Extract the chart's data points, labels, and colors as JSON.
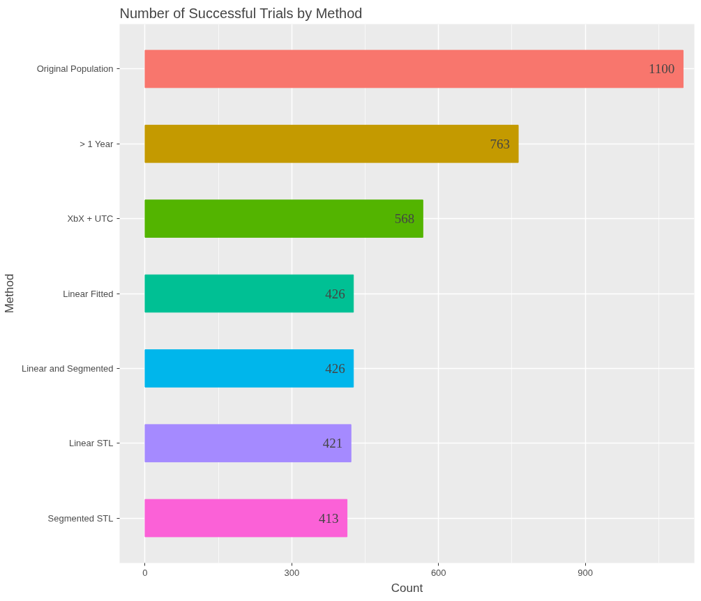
{
  "chart_data": {
    "type": "bar",
    "orientation": "horizontal",
    "title": "Number of Successful Trials by Method",
    "xlabel": "Count",
    "ylabel": "Method",
    "categories": [
      "Original Population",
      "> 1 Year",
      "XbX + UTC",
      "Linear Fitted",
      "Linear and Segmented",
      "Linear STL",
      "Segmented STL"
    ],
    "values": [
      1100,
      763,
      568,
      426,
      426,
      421,
      413
    ],
    "colors": [
      "#f8766d",
      "#c49a00",
      "#53b400",
      "#00c094",
      "#00b6eb",
      "#a58aff",
      "#fb61d7"
    ],
    "xlim": [
      -52,
      1123
    ],
    "xticks": [
      0,
      300,
      600,
      900
    ],
    "grid": true,
    "data_labels": true
  }
}
